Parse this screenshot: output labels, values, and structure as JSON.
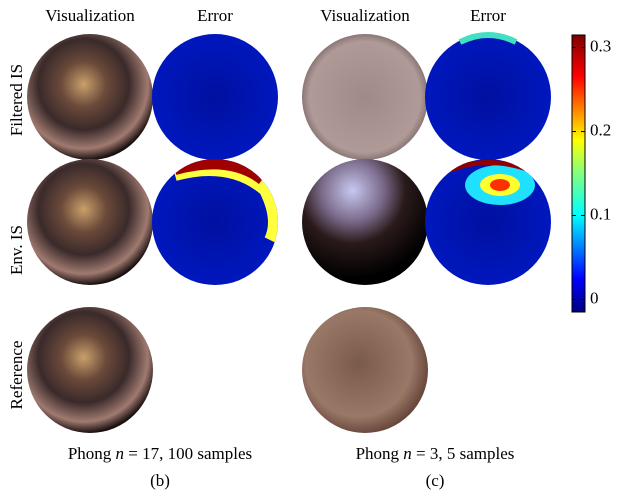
{
  "figure": {
    "column_headers": [
      "Visualization",
      "Error",
      "Visualization",
      "Error"
    ],
    "row_labels": [
      "Filtered IS",
      "Env. IS",
      "Reference"
    ],
    "captions": [
      {
        "prefix": "Phong",
        "var": "n",
        "rest": "= 17,  100 samples",
        "label": "(b)"
      },
      {
        "prefix": "Phong",
        "var": "n",
        "rest": "= 3,   5 samples",
        "label": "(c)"
      }
    ],
    "colorbar": {
      "lim": [
        -0.015,
        0.315
      ],
      "ticks": [
        0,
        0.1,
        0.2,
        0.3
      ]
    }
  }
}
